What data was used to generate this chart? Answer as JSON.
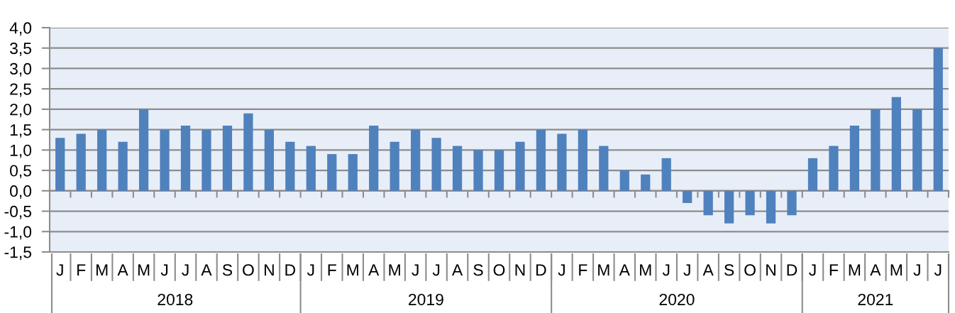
{
  "chart_data": {
    "type": "bar",
    "categories": [
      "J",
      "F",
      "M",
      "A",
      "M",
      "J",
      "J",
      "A",
      "S",
      "O",
      "N",
      "D",
      "J",
      "F",
      "M",
      "A",
      "M",
      "J",
      "J",
      "A",
      "S",
      "O",
      "N",
      "D",
      "J",
      "F",
      "M",
      "A",
      "M",
      "J",
      "J",
      "A",
      "S",
      "O",
      "N",
      "D",
      "J",
      "F",
      "M",
      "A",
      "M",
      "J",
      "J"
    ],
    "series": [
      {
        "color": "#4f81bd",
        "values": [
          1.3,
          1.4,
          1.5,
          1.2,
          2.0,
          1.5,
          1.6,
          1.5,
          1.6,
          1.9,
          1.5,
          1.2,
          1.1,
          0.9,
          0.9,
          1.6,
          1.2,
          1.5,
          1.3,
          1.1,
          1.0,
          1.0,
          1.2,
          1.5,
          1.4,
          1.5,
          1.1,
          0.5,
          0.4,
          0.8,
          -0.3,
          -0.6,
          -0.8,
          -0.6,
          -0.8,
          -0.6,
          0.8,
          1.1,
          1.6,
          2.0,
          2.3,
          2.0,
          3.5
        ]
      }
    ],
    "ylim": [
      -1.5,
      4.0
    ],
    "yticks": [
      {
        "value": -1.5,
        "label": "-1,5"
      },
      {
        "value": -1.0,
        "label": "-1,0"
      },
      {
        "value": -0.5,
        "label": "-0,5"
      },
      {
        "value": 0.0,
        "label": "0,0"
      },
      {
        "value": 0.5,
        "label": "0,5"
      },
      {
        "value": 1.0,
        "label": "1,0"
      },
      {
        "value": 1.5,
        "label": "1,5"
      },
      {
        "value": 2.0,
        "label": "2,0"
      },
      {
        "value": 2.5,
        "label": "2,5"
      },
      {
        "value": 3.0,
        "label": "3,0"
      },
      {
        "value": 3.5,
        "label": "3,5"
      },
      {
        "value": 4.0,
        "label": "4,0"
      }
    ],
    "annotations": [
      "2018",
      "2019",
      "2020",
      "2021"
    ],
    "grid": "y"
  }
}
